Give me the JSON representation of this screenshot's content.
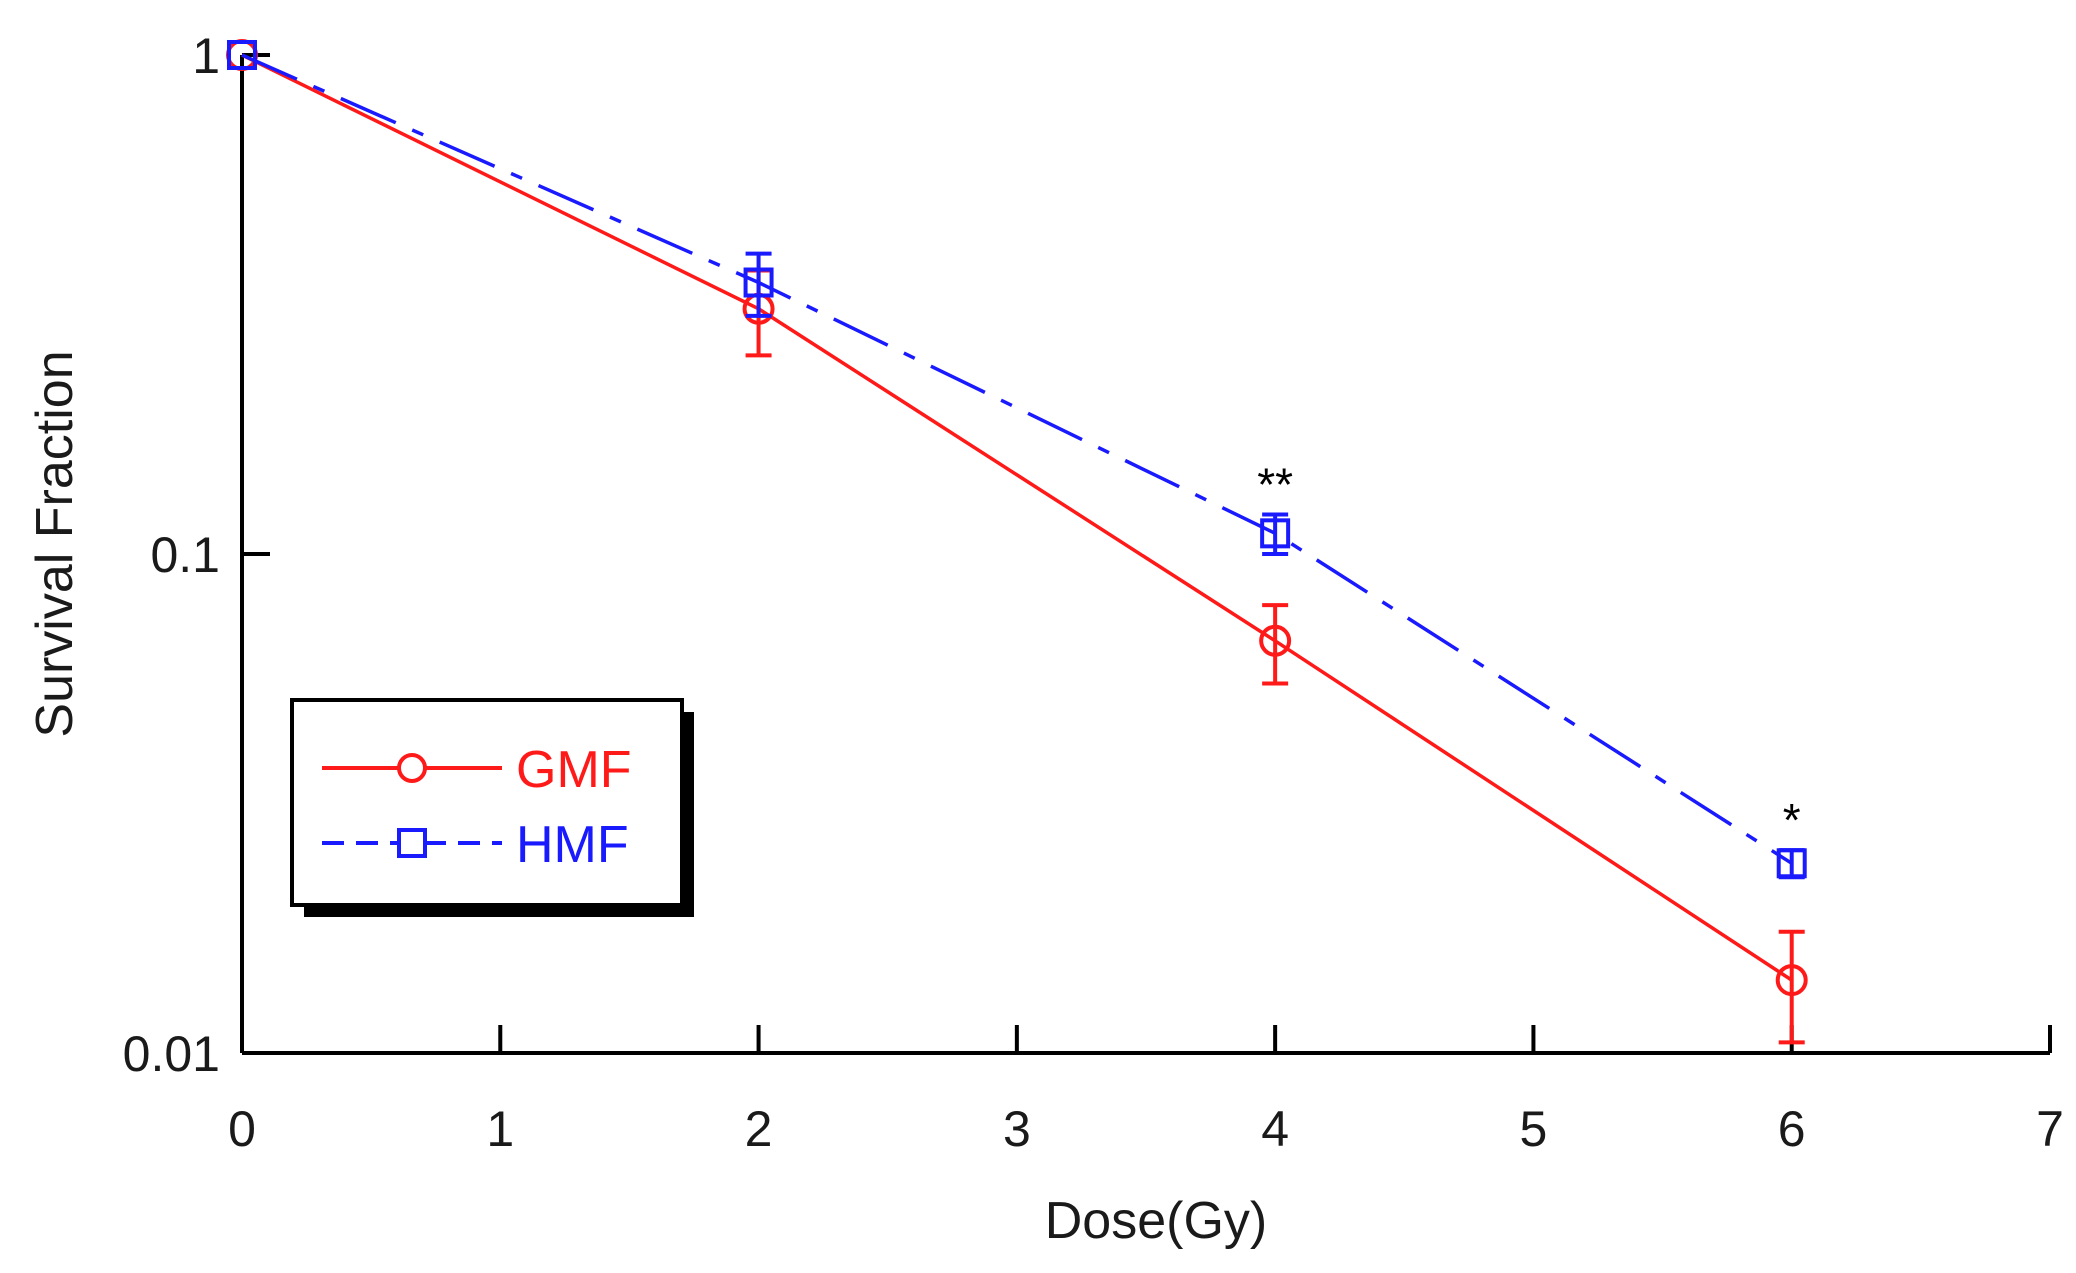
{
  "chart_data": {
    "type": "line",
    "xlabel": "Dose(Gy)",
    "ylabel": "Survival Fraction",
    "xlim": [
      0,
      7
    ],
    "ylim": [
      0.01,
      1
    ],
    "y_scale": "log",
    "x_ticks": [
      "0",
      "1",
      "2",
      "3",
      "4",
      "5",
      "6",
      "7"
    ],
    "y_ticks": [
      "0.01",
      "0.1",
      "1"
    ],
    "grid": false,
    "legend_position": "left",
    "x": [
      0,
      2,
      4,
      6
    ],
    "series": [
      {
        "name": "GMF",
        "color": "#ff1a1a",
        "marker": "circle",
        "line_style": "solid",
        "values": [
          1,
          0.31,
          0.067,
          0.014
        ],
        "error": [
          0,
          0.06,
          0.012,
          0.0035
        ]
      },
      {
        "name": "HMF",
        "color": "#1a1aff",
        "marker": "square",
        "line_style": "dashed",
        "values": [
          1,
          0.35,
          0.11,
          0.024
        ],
        "error": [
          0,
          0.05,
          0.01,
          0.0015
        ]
      }
    ],
    "annotations": [
      {
        "text": "**",
        "x": 4,
        "series": "HMF"
      },
      {
        "text": "*",
        "x": 6,
        "series": "HMF"
      }
    ]
  }
}
